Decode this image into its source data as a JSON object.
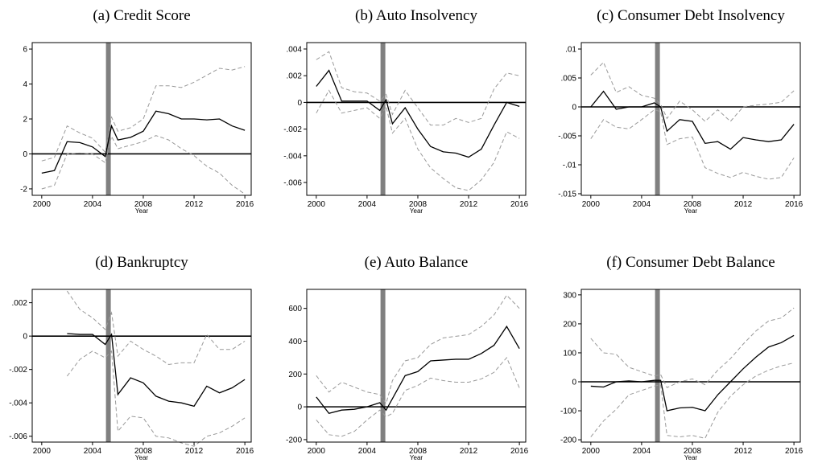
{
  "chart_data": [
    {
      "type": "line",
      "title": "(a) Credit Score",
      "xlabel": "Year",
      "xlim": [
        1999.25,
        2016.5
      ],
      "xticks": [
        2000,
        2004,
        2008,
        2012,
        2016
      ],
      "ylim": [
        -2.37,
        6.37
      ],
      "yticks": [
        -2,
        0,
        2,
        4,
        6
      ],
      "hline": 0,
      "vline": 2005.25,
      "vline_color": "#808080",
      "x": [
        2000,
        2001,
        2002,
        2003,
        2004,
        2005,
        2005.5,
        2006,
        2007,
        2008,
        2009,
        2010,
        2011,
        2012,
        2013,
        2014,
        2015,
        2016
      ],
      "series": [
        {
          "color": "#000000",
          "dashed": false,
          "values": [
            -1.1,
            -0.95,
            0.7,
            0.65,
            0.4,
            -0.15,
            1.6,
            0.8,
            0.95,
            1.3,
            2.45,
            2.3,
            2.0,
            2.0,
            1.95,
            2.0,
            1.6,
            1.35
          ]
        },
        {
          "color": "#999999",
          "dashed": true,
          "values": [
            -0.4,
            -0.2,
            1.6,
            1.2,
            0.9,
            0.1,
            2.1,
            1.3,
            1.5,
            2.0,
            3.9,
            3.9,
            3.8,
            4.1,
            4.5,
            4.9,
            4.8,
            5.0
          ]
        },
        {
          "color": "#999999",
          "dashed": true,
          "values": [
            -2.0,
            -1.8,
            0.0,
            0.05,
            0.0,
            -0.5,
            1.0,
            0.3,
            0.5,
            0.7,
            1.05,
            0.8,
            0.3,
            -0.1,
            -0.7,
            -1.1,
            -1.8,
            -2.3
          ]
        }
      ]
    },
    {
      "type": "line",
      "title": "(b) Auto Insolvency",
      "xlabel": "Year",
      "xlim": [
        1999.25,
        2016.5
      ],
      "xticks": [
        2000,
        2004,
        2008,
        2012,
        2016
      ],
      "ylim": [
        -0.00696,
        0.00448
      ],
      "yticks": [
        {
          "value": -0.006,
          "label": "-.006"
        },
        {
          "value": -0.004,
          "label": "-.004"
        },
        {
          "value": -0.002,
          "label": "-.002"
        },
        0,
        {
          "value": 0.002,
          "label": ".002"
        },
        {
          "value": 0.004,
          "label": ".004"
        }
      ],
      "hline": 0,
      "vline": 2005.25,
      "vline_color": "#808080",
      "x": [
        2000,
        2001,
        2002,
        2003,
        2004,
        2005,
        2005.5,
        2006,
        2007,
        2008,
        2009,
        2010,
        2011,
        2012,
        2013,
        2014,
        2015,
        2016
      ],
      "series": [
        {
          "color": "#000000",
          "dashed": false,
          "values": [
            0.0012,
            0.0024,
            0.0001,
            0.0001,
            0.0001,
            -0.0006,
            0.0002,
            -0.0016,
            -0.0004,
            -0.002,
            -0.0033,
            -0.0037,
            -0.0038,
            -0.0041,
            -0.0035,
            -0.0017,
            0,
            -0.0003
          ]
        },
        {
          "color": "#999999",
          "dashed": true,
          "values": [
            0.0032,
            0.0038,
            0.0011,
            0.0008,
            0.0007,
            0.0001,
            0.0006,
            -0.0009,
            0.0009,
            -0.0004,
            -0.0017,
            -0.0017,
            -0.0012,
            -0.0015,
            -0.0012,
            0.001,
            0.0022,
            0.002
          ]
        },
        {
          "color": "#999999",
          "dashed": true,
          "values": [
            -0.0008,
            0.0009,
            -0.0008,
            -0.0006,
            -0.0004,
            -0.0012,
            -0.0003,
            -0.0023,
            -0.0012,
            -0.0035,
            -0.0049,
            -0.0057,
            -0.0064,
            -0.0066,
            -0.0058,
            -0.0045,
            -0.0022,
            -0.0027
          ]
        }
      ]
    },
    {
      "type": "line",
      "title": "(c) Consumer Debt Insolvency",
      "xlabel": "Year",
      "xlim": [
        1999.25,
        2016.5
      ],
      "xticks": [
        2000,
        2004,
        2008,
        2012,
        2016
      ],
      "ylim": [
        -0.01528,
        0.01111
      ],
      "yticks": [
        {
          "value": -0.015,
          "label": "-.015"
        },
        {
          "value": -0.01,
          "label": "-.01"
        },
        {
          "value": -0.005,
          "label": "-.005"
        },
        0,
        {
          "value": 0.005,
          "label": ".005"
        },
        {
          "value": 0.01,
          "label": ".01"
        }
      ],
      "hline": 0,
      "vline": 2005.25,
      "vline_color": "#808080",
      "x": [
        2000,
        2001,
        2002,
        2003,
        2004,
        2005,
        2005.5,
        2006,
        2007,
        2008,
        2009,
        2010,
        2011,
        2012,
        2013,
        2014,
        2015,
        2016
      ],
      "series": [
        {
          "color": "#000000",
          "dashed": false,
          "values": [
            0,
            0.0027,
            -0.0004,
            0,
            0,
            0.0007,
            0,
            -0.0042,
            -0.0022,
            -0.0025,
            -0.0063,
            -0.006,
            -0.0073,
            -0.0053,
            -0.0057,
            -0.006,
            -0.0057,
            -0.003
          ]
        },
        {
          "color": "#999999",
          "dashed": true,
          "values": [
            0.0055,
            0.0077,
            0.0025,
            0.0035,
            0.002,
            0.0015,
            0.0005,
            -0.002,
            0.001,
            -0.0005,
            -0.0025,
            -0.0005,
            -0.0025,
            0,
            0.0003,
            0.0005,
            0.0008,
            0.0028
          ]
        },
        {
          "color": "#999999",
          "dashed": true,
          "values": [
            -0.0055,
            -0.0022,
            -0.0035,
            -0.0038,
            -0.0022,
            -0.0005,
            -0.0008,
            -0.0065,
            -0.0055,
            -0.0052,
            -0.0105,
            -0.0115,
            -0.0122,
            -0.0113,
            -0.012,
            -0.0125,
            -0.0122,
            -0.0088
          ]
        }
      ]
    },
    {
      "type": "line",
      "title": "(d) Bankruptcy",
      "xlabel": "Year",
      "xlim": [
        1999.25,
        2016.5
      ],
      "xticks": [
        2000,
        2004,
        2008,
        2012,
        2016
      ],
      "ylim": [
        -0.00635,
        0.0028
      ],
      "yticks": [
        {
          "value": -0.006,
          "label": "-.006"
        },
        {
          "value": -0.004,
          "label": "-.004"
        },
        {
          "value": -0.002,
          "label": "-.002"
        },
        0,
        {
          "value": 0.002,
          "label": ".002"
        }
      ],
      "hline": 0,
      "vline": 2005.25,
      "vline_color": "#808080",
      "x": [
        2000,
        2001,
        2002,
        2003,
        2004,
        2005,
        2005.5,
        2006,
        2007,
        2008,
        2009,
        2010,
        2011,
        2012,
        2013,
        2014,
        2015,
        2016
      ],
      "series": [
        {
          "color": "#000000",
          "dashed": false,
          "values": [
            null,
            null,
            0.00015,
            0.0001,
            0.0001,
            -0.0005,
            0.0001,
            -0.0035,
            -0.0025,
            -0.0028,
            -0.0036,
            -0.0039,
            -0.004,
            -0.0042,
            -0.003,
            -0.0034,
            -0.0031,
            -0.0026
          ]
        },
        {
          "color": "#999999",
          "dashed": true,
          "values": [
            null,
            null,
            0.0027,
            0.0016,
            0.0011,
            0.0004,
            0.0014,
            -0.0012,
            -0.0003,
            -0.0008,
            -0.0012,
            -0.0017,
            -0.0016,
            -0.0016,
            0.0001,
            -0.0008,
            -0.0008,
            -0.0003
          ]
        },
        {
          "color": "#999999",
          "dashed": true,
          "values": [
            null,
            null,
            -0.0024,
            -0.0014,
            -0.0009,
            -0.0013,
            -0.0009,
            -0.0057,
            -0.0048,
            -0.0049,
            -0.006,
            -0.0061,
            -0.0064,
            -0.0066,
            -0.006,
            -0.0058,
            -0.0054,
            -0.0049
          ]
        }
      ]
    },
    {
      "type": "line",
      "title": "(e) Auto Balance",
      "xlabel": "Year",
      "xlim": [
        1999.25,
        2016.5
      ],
      "xticks": [
        2000,
        2004,
        2008,
        2012,
        2016
      ],
      "ylim": [
        -215,
        716
      ],
      "yticks": [
        -200,
        0,
        200,
        400,
        600
      ],
      "hline": 0,
      "vline": 2005.25,
      "vline_color": "#808080",
      "x": [
        2000,
        2001,
        2002,
        2003,
        2004,
        2005,
        2005.5,
        2006,
        2007,
        2008,
        2009,
        2010,
        2011,
        2012,
        2013,
        2014,
        2015,
        2016
      ],
      "series": [
        {
          "color": "#000000",
          "dashed": false,
          "values": [
            60,
            -40,
            -20,
            -15,
            0,
            25,
            -20,
            50,
            190,
            215,
            280,
            285,
            290,
            290,
            325,
            375,
            490,
            355
          ]
        },
        {
          "color": "#999999",
          "dashed": true,
          "values": [
            190,
            90,
            150,
            120,
            90,
            75,
            20,
            160,
            280,
            300,
            380,
            420,
            430,
            440,
            490,
            560,
            680,
            600
          ]
        },
        {
          "color": "#999999",
          "dashed": true,
          "values": [
            -80,
            -170,
            -180,
            -150,
            -80,
            -20,
            -60,
            -40,
            100,
            130,
            175,
            160,
            150,
            150,
            170,
            210,
            300,
            115
          ]
        }
      ]
    },
    {
      "type": "line",
      "title": "(f) Consumer Debt Balance",
      "xlabel": "Year",
      "xlim": [
        1999.25,
        2016.5
      ],
      "xticks": [
        2000,
        2004,
        2008,
        2012,
        2016
      ],
      "ylim": [
        -208,
        319
      ],
      "yticks": [
        -200,
        -100,
        0,
        100,
        200,
        300
      ],
      "hline": 0,
      "vline": 2005.25,
      "vline_color": "#808080",
      "x": [
        2000,
        2001,
        2002,
        2003,
        2004,
        2005,
        2005.5,
        2006,
        2007,
        2008,
        2009,
        2010,
        2011,
        2012,
        2013,
        2014,
        2015,
        2016
      ],
      "series": [
        {
          "color": "#000000",
          "dashed": false,
          "values": [
            -15,
            -18,
            0,
            3,
            0,
            5,
            5,
            -100,
            -90,
            -88,
            -100,
            -45,
            0,
            45,
            85,
            120,
            135,
            160
          ]
        },
        {
          "color": "#999999",
          "dashed": true,
          "values": [
            150,
            100,
            95,
            50,
            35,
            20,
            25,
            -20,
            0,
            10,
            -10,
            40,
            80,
            130,
            175,
            210,
            220,
            255
          ]
        },
        {
          "color": "#999999",
          "dashed": true,
          "values": [
            -190,
            -135,
            -95,
            -45,
            -30,
            -15,
            -10,
            -185,
            -190,
            -185,
            -195,
            -105,
            -50,
            -10,
            20,
            40,
            55,
            65
          ]
        }
      ]
    }
  ]
}
